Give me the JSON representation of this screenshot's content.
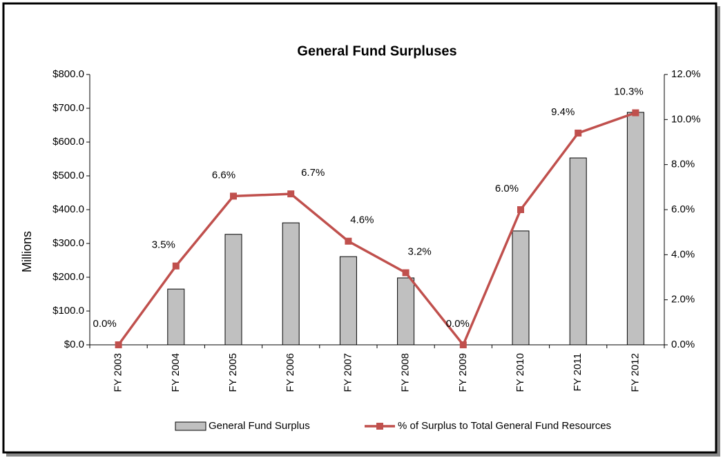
{
  "chart_data": {
    "type": "bar_line",
    "title": "General Fund Surpluses",
    "y_label": "Millions",
    "categories": [
      "FY 2003",
      "FY 2004",
      "FY 2005",
      "FY 2006",
      "FY 2007",
      "FY 2008",
      "FY 2009",
      "FY 2010",
      "FY 2011",
      "FY 2012"
    ],
    "series": [
      {
        "name": "General Fund Surplus",
        "type": "bar",
        "color": "#c0c0c0",
        "values": [
          0,
          165,
          327,
          361,
          261,
          198,
          0,
          337,
          553,
          688
        ]
      },
      {
        "name": "% of Surplus to Total General Fund Resources",
        "type": "line",
        "axis": "y2",
        "color": "#c0504d",
        "values": [
          0.0,
          3.5,
          6.6,
          6.7,
          4.6,
          3.2,
          0.0,
          6.0,
          9.4,
          10.3
        ],
        "value_labels": [
          "0.0%",
          "3.5%",
          "6.6%",
          "6.7%",
          "4.6%",
          "3.2%",
          "0.0%",
          "6.0%",
          "9.4%",
          "10.3%"
        ]
      }
    ],
    "ylim": [
      0,
      800
    ],
    "yticks": [
      {
        "value": 0,
        "label": "$0.0"
      },
      {
        "value": 100,
        "label": "$100.0"
      },
      {
        "value": 200,
        "label": "$200.0"
      },
      {
        "value": 300,
        "label": "$300.0"
      },
      {
        "value": 400,
        "label": "$400.0"
      },
      {
        "value": 500,
        "label": "$500.0"
      },
      {
        "value": 600,
        "label": "$600.0"
      },
      {
        "value": 700,
        "label": "$700.0"
      },
      {
        "value": 800,
        "label": "$800.0"
      }
    ],
    "y2lim": [
      0,
      12
    ],
    "y2ticks": [
      {
        "value": 0,
        "label": "0.0%"
      },
      {
        "value": 2,
        "label": "2.0%"
      },
      {
        "value": 4,
        "label": "4.0%"
      },
      {
        "value": 6,
        "label": "6.0%"
      },
      {
        "value": 8,
        "label": "8.0%"
      },
      {
        "value": 10,
        "label": "10.0%"
      },
      {
        "value": 12,
        "label": "12.0%"
      }
    ],
    "legend": "bottom"
  }
}
